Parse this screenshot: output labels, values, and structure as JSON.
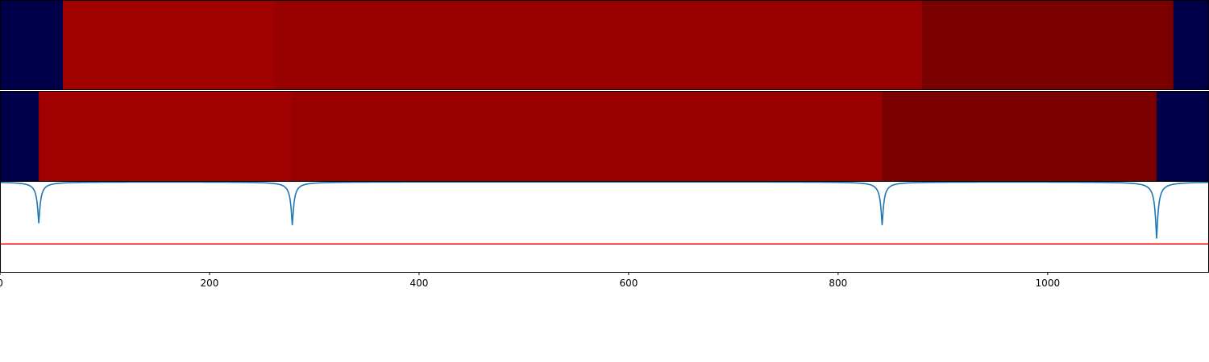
{
  "chart_data": [
    {
      "type": "heatmap",
      "title": "",
      "xlim": [
        0,
        1154
      ],
      "segments": [
        {
          "start": 0,
          "end": 60,
          "color": "#00004a"
        },
        {
          "start": 60,
          "end": 262,
          "color": "#a00000"
        },
        {
          "start": 262,
          "end": 880,
          "color": "#980000"
        },
        {
          "start": 880,
          "end": 1120,
          "color": "#7a0000"
        },
        {
          "start": 1120,
          "end": 1154,
          "color": "#00004a"
        }
      ]
    },
    {
      "type": "heatmap",
      "title": "",
      "xlim": [
        0,
        1154
      ],
      "segments": [
        {
          "start": 0,
          "end": 37,
          "color": "#00004a"
        },
        {
          "start": 37,
          "end": 279,
          "color": "#a00000"
        },
        {
          "start": 279,
          "end": 842,
          "color": "#980000"
        },
        {
          "start": 842,
          "end": 1104,
          "color": "#7a0000"
        },
        {
          "start": 1104,
          "end": 1154,
          "color": "#00004a"
        }
      ]
    },
    {
      "type": "line",
      "title": "",
      "xlabel": "",
      "ylabel": "",
      "xlim": [
        0,
        1154
      ],
      "ylim": [
        0,
        1
      ],
      "grid": false,
      "x_ticks": [
        0,
        200,
        400,
        600,
        800,
        1000
      ],
      "x_tick_labels": [
        "0",
        "200",
        "400",
        "600",
        "800",
        "1000"
      ],
      "series_color": "#1f77b4",
      "baseline": 1.0,
      "dips": [
        {
          "x": 37,
          "depth": 0.46
        },
        {
          "x": 279,
          "depth": 0.48
        },
        {
          "x": 842,
          "depth": 0.48
        },
        {
          "x": 1104,
          "depth": 0.63
        }
      ],
      "threshold": {
        "value": 0.31,
        "color": "#ff0000"
      }
    }
  ]
}
